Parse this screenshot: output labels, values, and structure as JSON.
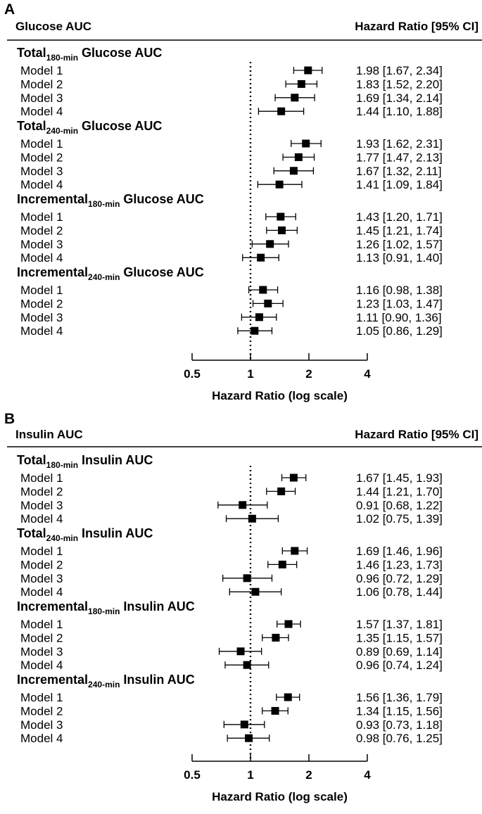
{
  "chart_data": [
    {
      "type": "forest",
      "panel_label": "A",
      "left_header": "Glucose AUC",
      "right_header": "Hazard Ratio [95% CI]",
      "xlabel": "Hazard  Ratio (log scale)",
      "x_scale": "log2",
      "xlim": [
        0.5,
        4
      ],
      "x_ticks": [
        "0.5",
        "1",
        "2",
        "4"
      ],
      "x_tick_values": [
        0.5,
        1,
        2,
        4
      ],
      "reference_line": 1,
      "groups": [
        {
          "name_main": "Total",
          "name_sub": "180-min",
          "name_tail": " Glucose AUC",
          "rows": [
            {
              "label": "Model 1",
              "hr": 1.98,
              "lo": 1.67,
              "hi": 2.34,
              "text": "1.98 [1.67, 2.34]"
            },
            {
              "label": "Model 2",
              "hr": 1.83,
              "lo": 1.52,
              "hi": 2.2,
              "text": "1.83 [1.52, 2.20]"
            },
            {
              "label": "Model 3",
              "hr": 1.69,
              "lo": 1.34,
              "hi": 2.14,
              "text": "1.69 [1.34, 2.14]"
            },
            {
              "label": "Model 4",
              "hr": 1.44,
              "lo": 1.1,
              "hi": 1.88,
              "text": "1.44 [1.10, 1.88]"
            }
          ]
        },
        {
          "name_main": "Total",
          "name_sub": "240-min",
          "name_tail": " Glucose AUC",
          "rows": [
            {
              "label": "Model 1",
              "hr": 1.93,
              "lo": 1.62,
              "hi": 2.31,
              "text": "1.93 [1.62, 2.31]"
            },
            {
              "label": "Model 2",
              "hr": 1.77,
              "lo": 1.47,
              "hi": 2.13,
              "text": "1.77 [1.47, 2.13]"
            },
            {
              "label": "Model 3",
              "hr": 1.67,
              "lo": 1.32,
              "hi": 2.11,
              "text": "1.67 [1.32, 2.11]"
            },
            {
              "label": "Model 4",
              "hr": 1.41,
              "lo": 1.09,
              "hi": 1.84,
              "text": "1.41 [1.09, 1.84]"
            }
          ]
        },
        {
          "name_main": "Incremental",
          "name_sub": "180-min",
          "name_tail": " Glucose AUC",
          "rows": [
            {
              "label": "Model 1",
              "hr": 1.43,
              "lo": 1.2,
              "hi": 1.71,
              "text": "1.43 [1.20, 1.71]"
            },
            {
              "label": "Model 2",
              "hr": 1.45,
              "lo": 1.21,
              "hi": 1.74,
              "text": "1.45 [1.21, 1.74]"
            },
            {
              "label": "Model 3",
              "hr": 1.26,
              "lo": 1.02,
              "hi": 1.57,
              "text": "1.26 [1.02, 1.57]"
            },
            {
              "label": "Model 4",
              "hr": 1.13,
              "lo": 0.91,
              "hi": 1.4,
              "text": "1.13 [0.91, 1.40]"
            }
          ]
        },
        {
          "name_main": "Incremental",
          "name_sub": "240-min",
          "name_tail": " Glucose AUC",
          "rows": [
            {
              "label": "Model 1",
              "hr": 1.16,
              "lo": 0.98,
              "hi": 1.38,
              "text": "1.16 [0.98, 1.38]"
            },
            {
              "label": "Model 2",
              "hr": 1.23,
              "lo": 1.03,
              "hi": 1.47,
              "text": "1.23 [1.03, 1.47]"
            },
            {
              "label": "Model 3",
              "hr": 1.11,
              "lo": 0.9,
              "hi": 1.36,
              "text": "1.11 [0.90, 1.36]"
            },
            {
              "label": "Model 4",
              "hr": 1.05,
              "lo": 0.86,
              "hi": 1.29,
              "text": "1.05 [0.86, 1.29]"
            }
          ]
        }
      ]
    },
    {
      "type": "forest",
      "panel_label": "B",
      "left_header": "Insulin AUC",
      "right_header": "Hazard Ratio [95% CI]",
      "xlabel": "Hazard Ratio (log scale)",
      "x_scale": "log2",
      "xlim": [
        0.5,
        4
      ],
      "x_ticks": [
        "0.5",
        "1",
        "2",
        "4"
      ],
      "x_tick_values": [
        0.5,
        1,
        2,
        4
      ],
      "reference_line": 1,
      "groups": [
        {
          "name_main": "Total",
          "name_sub": "180-min",
          "name_tail": " Insulin AUC",
          "rows": [
            {
              "label": "Model 1",
              "hr": 1.67,
              "lo": 1.45,
              "hi": 1.93,
              "text": "1.67 [1.45, 1.93]"
            },
            {
              "label": "Model 2",
              "hr": 1.44,
              "lo": 1.21,
              "hi": 1.7,
              "text": "1.44 [1.21, 1.70]"
            },
            {
              "label": "Model 3",
              "hr": 0.91,
              "lo": 0.68,
              "hi": 1.22,
              "text": "0.91 [0.68, 1.22]"
            },
            {
              "label": "Model 4",
              "hr": 1.02,
              "lo": 0.75,
              "hi": 1.39,
              "text": "1.02 [0.75, 1.39]"
            }
          ]
        },
        {
          "name_main": "Total",
          "name_sub": "240-min",
          "name_tail": " Insulin AUC",
          "rows": [
            {
              "label": "Model 1",
              "hr": 1.69,
              "lo": 1.46,
              "hi": 1.96,
              "text": "1.69 [1.46, 1.96]"
            },
            {
              "label": "Model 2",
              "hr": 1.46,
              "lo": 1.23,
              "hi": 1.73,
              "text": "1.46 [1.23, 1.73]"
            },
            {
              "label": "Model 3",
              "hr": 0.96,
              "lo": 0.72,
              "hi": 1.29,
              "text": "0.96 [0.72, 1.29]"
            },
            {
              "label": "Model 4",
              "hr": 1.06,
              "lo": 0.78,
              "hi": 1.44,
              "text": "1.06 [0.78, 1.44]"
            }
          ]
        },
        {
          "name_main": "Incremental",
          "name_sub": "180-min",
          "name_tail": " Insulin AUC",
          "rows": [
            {
              "label": "Model 1",
              "hr": 1.57,
              "lo": 1.37,
              "hi": 1.81,
              "text": "1.57 [1.37, 1.81]"
            },
            {
              "label": "Model 2",
              "hr": 1.35,
              "lo": 1.15,
              "hi": 1.57,
              "text": "1.35 [1.15, 1.57]"
            },
            {
              "label": "Model 3",
              "hr": 0.89,
              "lo": 0.69,
              "hi": 1.14,
              "text": "0.89 [0.69, 1.14]"
            },
            {
              "label": "Model 4",
              "hr": 0.96,
              "lo": 0.74,
              "hi": 1.24,
              "text": "0.96 [0.74, 1.24]"
            }
          ]
        },
        {
          "name_main": "Incremental",
          "name_sub": "240-min",
          "name_tail": " Insulin AUC",
          "rows": [
            {
              "label": "Model 1",
              "hr": 1.56,
              "lo": 1.36,
              "hi": 1.79,
              "text": "1.56 [1.36, 1.79]"
            },
            {
              "label": "Model 2",
              "hr": 1.34,
              "lo": 1.15,
              "hi": 1.56,
              "text": "1.34 [1.15, 1.56]"
            },
            {
              "label": "Model 3",
              "hr": 0.93,
              "lo": 0.73,
              "hi": 1.18,
              "text": "0.93 [0.73, 1.18]"
            },
            {
              "label": "Model 4",
              "hr": 0.98,
              "lo": 0.76,
              "hi": 1.25,
              "text": "0.98 [0.76, 1.25]"
            }
          ]
        }
      ]
    }
  ]
}
